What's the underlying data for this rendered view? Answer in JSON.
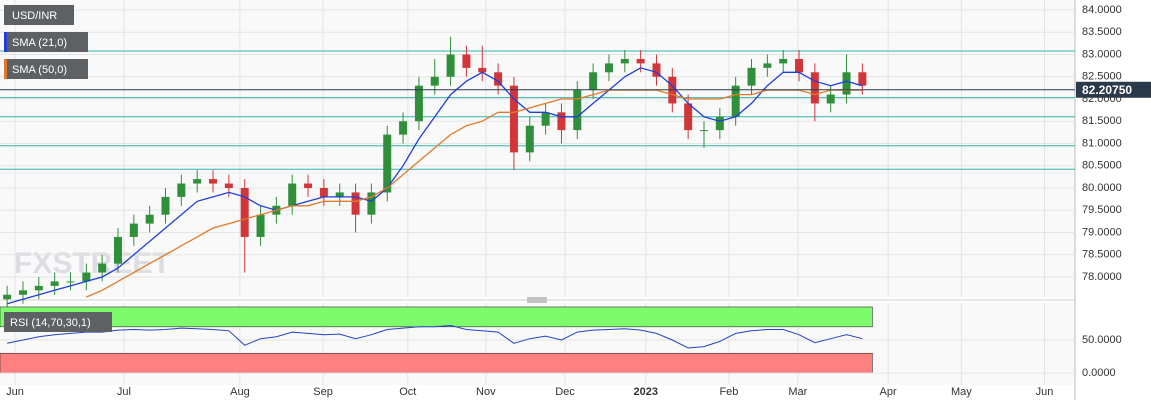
{
  "chart_data": [
    {
      "type": "candlestick",
      "title": "USD/INR",
      "watermark": "FXSTREET",
      "x": [
        -2,
        2,
        6,
        10,
        14,
        18,
        22,
        26,
        30,
        34,
        38,
        42,
        46,
        50,
        54,
        58,
        62,
        66,
        70,
        74,
        78,
        82,
        86,
        90,
        94,
        98,
        102,
        106,
        110,
        114,
        118,
        122,
        126,
        130,
        134,
        138,
        142,
        146,
        150,
        154,
        158,
        162,
        166,
        170,
        174,
        178,
        182,
        186,
        190,
        194,
        198,
        202,
        206,
        210,
        214
      ],
      "series": [
        {
          "up_color": "#2f8f3a",
          "down_color": "#d0363a",
          "open": [
            77.5,
            77.6,
            77.7,
            77.8,
            77.9,
            77.9,
            78.1,
            78.3,
            78.9,
            79.2,
            79.4,
            79.8,
            80.1,
            80.2,
            80.1,
            80.0,
            78.9,
            79.4,
            79.6,
            80.1,
            80.0,
            79.8,
            79.9,
            79.4,
            79.9,
            81.2,
            81.5,
            82.3,
            82.5,
            83.0,
            82.7,
            82.6,
            82.3,
            80.8,
            81.4,
            81.7,
            81.3,
            82.2,
            82.6,
            82.8,
            82.9,
            82.8,
            82.5,
            81.9,
            81.3,
            81.3,
            81.6,
            82.3,
            82.7,
            82.8,
            82.9,
            82.6,
            81.9,
            82.1,
            82.6
          ],
          "high": [
            77.8,
            77.9,
            78.0,
            78.1,
            78.1,
            78.3,
            78.5,
            79.1,
            79.4,
            79.6,
            80.0,
            80.3,
            80.4,
            80.4,
            80.3,
            80.2,
            79.6,
            79.8,
            80.3,
            80.3,
            80.2,
            80.1,
            80.1,
            80.1,
            81.4,
            81.7,
            82.5,
            82.9,
            83.4,
            83.2,
            83.2,
            82.8,
            82.5,
            81.6,
            81.9,
            81.9,
            82.4,
            82.8,
            83.0,
            83.1,
            83.1,
            83.0,
            82.7,
            82.1,
            81.5,
            81.8,
            82.5,
            82.9,
            83.0,
            83.1,
            83.1,
            82.8,
            82.3,
            83.0,
            82.8
          ],
          "low": [
            77.3,
            77.4,
            77.5,
            77.6,
            77.7,
            77.7,
            77.9,
            78.1,
            78.7,
            79.0,
            79.2,
            79.6,
            79.9,
            79.9,
            79.8,
            78.1,
            78.7,
            79.2,
            79.4,
            79.8,
            79.6,
            79.6,
            79.0,
            79.2,
            79.7,
            81.0,
            81.3,
            82.1,
            82.3,
            82.5,
            82.4,
            82.1,
            80.4,
            80.6,
            81.2,
            81.0,
            81.1,
            82.0,
            82.4,
            82.6,
            82.6,
            82.3,
            81.7,
            81.1,
            80.9,
            81.1,
            81.4,
            82.1,
            82.5,
            82.6,
            82.4,
            81.5,
            81.7,
            81.9,
            82.1
          ],
          "close": [
            77.6,
            77.7,
            77.8,
            77.9,
            77.9,
            78.1,
            78.3,
            78.9,
            79.2,
            79.4,
            79.8,
            80.1,
            80.2,
            80.1,
            80.0,
            78.9,
            79.4,
            79.6,
            80.1,
            80.0,
            79.8,
            79.9,
            79.4,
            79.9,
            81.2,
            81.5,
            82.3,
            82.5,
            83.0,
            82.7,
            82.6,
            82.3,
            80.8,
            81.4,
            81.7,
            81.3,
            82.2,
            82.6,
            82.8,
            82.9,
            82.8,
            82.5,
            81.9,
            81.3,
            81.3,
            81.6,
            82.3,
            82.7,
            82.8,
            82.9,
            82.6,
            81.9,
            82.1,
            82.6,
            82.3
          ]
        }
      ],
      "overlays": [
        {
          "name": "SMA (21,0)",
          "color": "#1f3fd6",
          "values": [
            77.4,
            77.5,
            77.6,
            77.7,
            77.8,
            77.9,
            78.0,
            78.2,
            78.5,
            78.8,
            79.1,
            79.4,
            79.7,
            79.8,
            79.9,
            79.8,
            79.6,
            79.5,
            79.6,
            79.7,
            79.8,
            79.8,
            79.8,
            79.7,
            80.0,
            80.5,
            81.1,
            81.6,
            82.1,
            82.4,
            82.6,
            82.4,
            82.0,
            81.7,
            81.7,
            81.6,
            81.6,
            81.9,
            82.2,
            82.5,
            82.7,
            82.6,
            82.3,
            81.9,
            81.6,
            81.5,
            81.6,
            81.9,
            82.3,
            82.6,
            82.6,
            82.4,
            82.3,
            82.4,
            82.3
          ]
        },
        {
          "name": "SMA (50,0)",
          "color": "#e07a2a",
          "values": [
            null,
            null,
            null,
            null,
            null,
            77.55,
            77.7,
            77.9,
            78.1,
            78.3,
            78.5,
            78.7,
            78.9,
            79.1,
            79.2,
            79.3,
            79.4,
            79.5,
            79.6,
            79.6,
            79.7,
            79.7,
            79.7,
            79.8,
            80.0,
            80.3,
            80.6,
            80.9,
            81.2,
            81.4,
            81.5,
            81.7,
            81.7,
            81.8,
            81.9,
            82.0,
            82.0,
            82.1,
            82.2,
            82.2,
            82.2,
            82.2,
            82.1,
            82.0,
            82.0,
            82.0,
            82.1,
            82.1,
            82.2,
            82.2,
            82.2,
            82.1,
            82.2,
            82.2,
            82.2
          ]
        }
      ],
      "levels": [
        83.08,
        82.03,
        81.6,
        80.95,
        80.42
      ],
      "level_color": "#33b3ad",
      "last_price": {
        "value": 82.2075,
        "label": "82.20750"
      },
      "xlim": [
        -3.8,
        267.7
      ],
      "ylim": [
        77.55,
        84.225
      ],
      "yticks": [
        {
          "value": 78,
          "label": "78.0000"
        },
        {
          "value": 78.5,
          "label": "78.5000"
        },
        {
          "value": 79,
          "label": "79.0000"
        },
        {
          "value": 79.5,
          "label": "79.5000"
        },
        {
          "value": 80,
          "label": "80.0000"
        },
        {
          "value": 80.5,
          "label": "80.5000"
        },
        {
          "value": 81,
          "label": "81.0000"
        },
        {
          "value": 81.5,
          "label": "81.5000"
        },
        {
          "value": 82,
          "label": "82.0000"
        },
        {
          "value": 82.5,
          "label": "82.5000"
        },
        {
          "value": 83,
          "label": "83.0000"
        },
        {
          "value": 83.5,
          "label": "83.5000"
        },
        {
          "value": 84,
          "label": "84.0000"
        }
      ],
      "grid": true
    },
    {
      "type": "line",
      "title": "RSI (14,70,30,1)",
      "series": [
        {
          "color": "#2443c4",
          "values": [
            45,
            50,
            55,
            58,
            60,
            62,
            62,
            65,
            66,
            65,
            66,
            68,
            67,
            66,
            64,
            42,
            52,
            55,
            62,
            60,
            58,
            59,
            52,
            58,
            66,
            68,
            70,
            70,
            72,
            66,
            64,
            62,
            45,
            52,
            56,
            50,
            62,
            65,
            66,
            67,
            65,
            60,
            50,
            38,
            40,
            48,
            60,
            64,
            66,
            66,
            58,
            46,
            52,
            58,
            52
          ]
        }
      ],
      "zones": [
        {
          "from": 70,
          "to": 100,
          "color": "#7dfb6c"
        },
        {
          "from": 0,
          "to": 30,
          "color": "#ff8080"
        }
      ],
      "ylim": [
        -18,
        106
      ],
      "yticks": [
        {
          "value": 0,
          "label": "0.0000"
        },
        {
          "value": 50,
          "label": "50.0000"
        }
      ],
      "xticks": [
        {
          "value": 0,
          "label": "Jun"
        },
        {
          "value": 27.5,
          "label": "Jul"
        },
        {
          "value": 56.8,
          "label": "Aug"
        },
        {
          "value": 77.8,
          "label": "Sep"
        },
        {
          "value": 99.2,
          "label": "Oct"
        },
        {
          "value": 118.9,
          "label": "Nov"
        },
        {
          "value": 138.9,
          "label": "Dec"
        },
        {
          "value": 159.3,
          "label": "2023"
        },
        {
          "value": 180.3,
          "label": "Feb"
        },
        {
          "value": 197.7,
          "label": "Mar"
        },
        {
          "value": 220.5,
          "label": "Apr"
        },
        {
          "value": 239,
          "label": "May"
        },
        {
          "value": 260,
          "label": "Jun"
        }
      ]
    }
  ]
}
